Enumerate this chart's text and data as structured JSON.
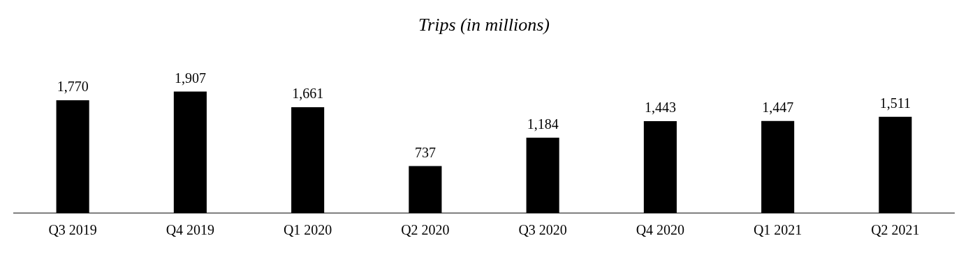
{
  "chart_data": {
    "type": "bar",
    "title": "Trips (in millions)",
    "categories": [
      "Q3 2019",
      "Q4 2019",
      "Q1 2020",
      "Q2 2020",
      "Q3 2020",
      "Q4 2020",
      "Q1 2021",
      "Q2 2021"
    ],
    "values": [
      1770,
      1907,
      1661,
      737,
      1184,
      1443,
      1447,
      1511
    ],
    "value_labels": [
      "1,770",
      "1,907",
      "1,661",
      "737",
      "1,184",
      "1,443",
      "1,447",
      "1,511"
    ],
    "color": "#000000",
    "grid": false,
    "legend": false,
    "tick_labels": "x"
  }
}
